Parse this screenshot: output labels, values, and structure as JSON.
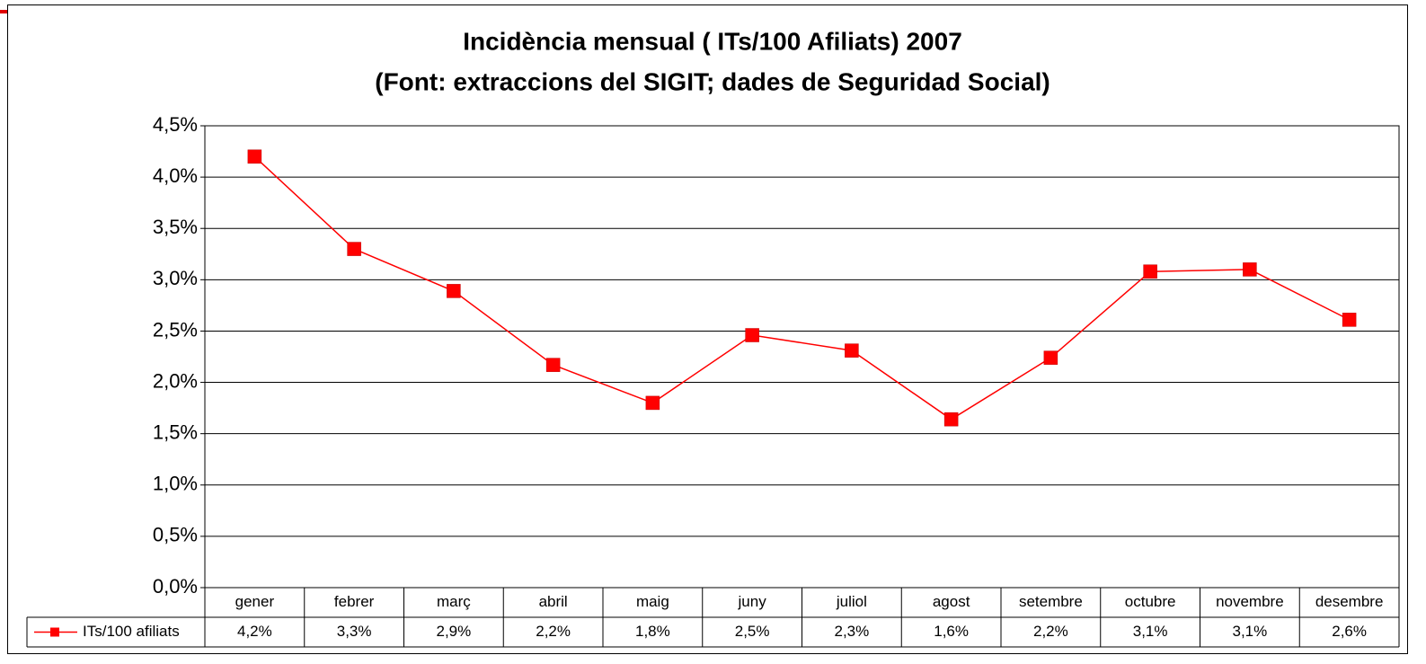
{
  "chart_data": {
    "type": "line",
    "title": "Incidència mensual ( ITs/100 Afiliats) 2007",
    "subtitle": "(Font: extraccions del SIGIT; dades de Seguridad Social)",
    "categories": [
      "gener",
      "febrer",
      "març",
      "abril",
      "maig",
      "juny",
      "juliol",
      "agost",
      "setembre",
      "octubre",
      "novembre",
      "desembre"
    ],
    "series": [
      {
        "name": "ITs/100 afiliats",
        "color": "#ff0000",
        "values": [
          4.2,
          3.3,
          2.89,
          2.17,
          1.8,
          2.46,
          2.31,
          1.64,
          2.24,
          3.08,
          3.1,
          2.61
        ],
        "value_labels": [
          "4,2%",
          "3,3%",
          "2,9%",
          "2,2%",
          "1,8%",
          "2,5%",
          "2,3%",
          "1,6%",
          "2,2%",
          "3,1%",
          "3,1%",
          "2,6%"
        ]
      }
    ],
    "ylim": [
      0,
      4.5
    ],
    "yticks": [
      {
        "value": 0,
        "label": "0,0%"
      },
      {
        "value": 0.5,
        "label": "0,5%"
      },
      {
        "value": 1,
        "label": "1,0%"
      },
      {
        "value": 1.5,
        "label": "1,5%"
      },
      {
        "value": 2,
        "label": "2,0%"
      },
      {
        "value": 2.5,
        "label": "2,5%"
      },
      {
        "value": 3,
        "label": "3,0%"
      },
      {
        "value": 3.5,
        "label": "3,5%"
      },
      {
        "value": 4,
        "label": "4,0%"
      },
      {
        "value": 4.5,
        "label": "4,5%"
      }
    ],
    "grid": true
  }
}
